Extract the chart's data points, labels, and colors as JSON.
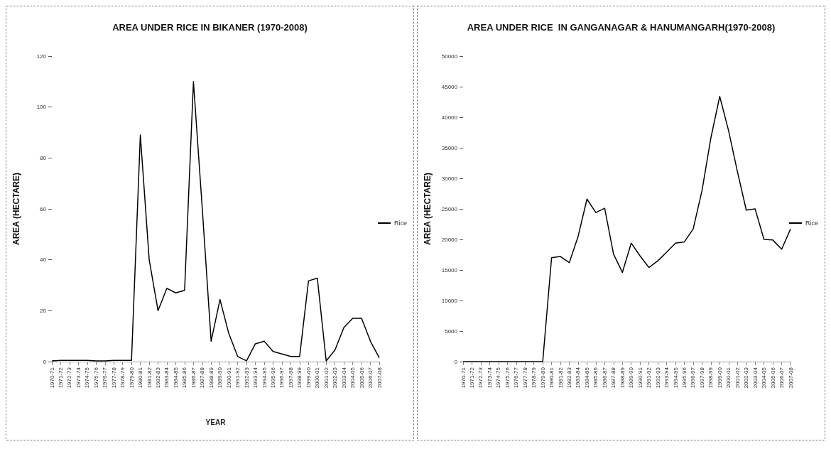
{
  "chart_data": [
    {
      "type": "line",
      "title": "AREA UNDER RICE IN BIKANER (1970-2008)",
      "xlabel": "YEAR",
      "ylabel": "AREA (HECTARE)",
      "categories": [
        "1970-71",
        "1971-72",
        "1972-73",
        "1973-74",
        "1974-75",
        "1975-76",
        "1976-77",
        "1977-78",
        "1978-79",
        "1979-80",
        "1980-81",
        "1981-82",
        "1982-83",
        "1983-84",
        "1984-85",
        "1985-86",
        "1986-87",
        "1987-88",
        "1988-89",
        "1989-90",
        "1990-91",
        "1991-92",
        "1992-93",
        "1993-94",
        "1994-95",
        "1995-96",
        "1996-97",
        "1997-98",
        "1998-99",
        "1999-00",
        "2000-01",
        "2001-02",
        "2002-03",
        "2003-04",
        "2004-05",
        "2005-06",
        "2006-07",
        "2007-08"
      ],
      "series": [
        {
          "name": "Rice",
          "color": "#000000",
          "values": [
            0.3,
            0.5,
            0.5,
            0.5,
            0.5,
            0.3,
            0.3,
            0.5,
            0.5,
            0.5,
            89,
            40,
            20,
            28.8,
            27,
            28,
            110,
            60,
            8,
            24.4,
            11,
            2,
            0.3,
            7,
            8,
            4,
            3,
            2,
            2,
            31.7,
            32.8,
            0.3,
            4.6,
            13.4,
            17,
            17,
            8,
            1.5
          ]
        }
      ],
      "ylim": [
        0,
        120
      ],
      "yticks": [
        0,
        20,
        40,
        60,
        80,
        100,
        120
      ],
      "grid": false,
      "legend": "right",
      "marker": "none",
      "line_style": "solid"
    },
    {
      "type": "line",
      "title": "AREA UNDER RICE  IN GANGANAGAR & HANUMANGARH(1970-2008)",
      "ylabel": "AREA (HECTARE)",
      "categories": [
        "1970-71",
        "1971-72",
        "1972-73",
        "1973-74",
        "1974-75",
        "1975-76",
        "1976-77",
        "1977-78",
        "1978-79",
        "1979-80",
        "1980-81",
        "1981-82",
        "1982-83",
        "1983-84",
        "1984-85",
        "1985-86",
        "1986-87",
        "1987-88",
        "1988-89",
        "1989-90",
        "1990-91",
        "1991-92",
        "1992-93",
        "1993-94",
        "1994-95",
        "1995-96",
        "1996-97",
        "1997-98",
        "1998-99",
        "1999-00",
        "2000-01",
        "2001-02",
        "2002-03",
        "2003-04",
        "2004-05",
        "2005-06",
        "2006-07",
        "2007-08"
      ],
      "series": [
        {
          "name": "Rice",
          "color": "#000000",
          "values": [
            0,
            0,
            0,
            0,
            0,
            0,
            0,
            0,
            0,
            0,
            17000,
            17200,
            16200,
            20500,
            26600,
            24400,
            25100,
            17600,
            14600,
            19400,
            17300,
            15400,
            16500,
            17900,
            19400,
            19600,
            21700,
            28000,
            36600,
            43400,
            37800,
            31100,
            24800,
            25000,
            20000,
            19900,
            18400,
            21700
          ]
        }
      ],
      "ylim": [
        0,
        50000
      ],
      "yticks": [
        0,
        5000,
        10000,
        15000,
        20000,
        25000,
        30000,
        35000,
        40000,
        45000,
        50000
      ],
      "grid": false,
      "legend": "right",
      "marker": "none",
      "line_style": "solid"
    }
  ]
}
